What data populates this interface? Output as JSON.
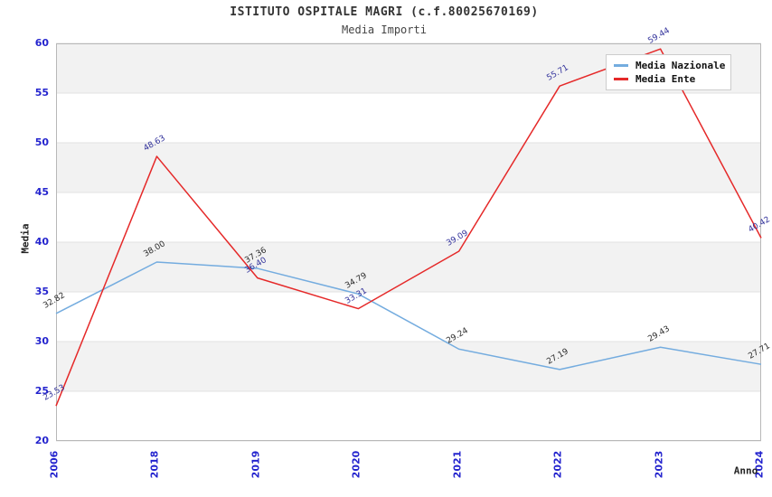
{
  "header": {
    "title": "ISTITUTO OSPITALE MAGRI (c.f.80025670169)",
    "subtitle": "Media Importi"
  },
  "chart_data": {
    "type": "line",
    "title": "ISTITUTO OSPITALE MAGRI (c.f.80025670169)",
    "subtitle": "Media Importi",
    "xlabel": "Anno",
    "ylabel": "Media",
    "x": [
      "2006",
      "2018",
      "2019",
      "2020",
      "2021",
      "2022",
      "2023",
      "2024"
    ],
    "series": [
      {
        "name": "Media Nazionale",
        "color": "#74ACDF",
        "label_color": "#2a2a2a",
        "values": [
          32.82,
          38.0,
          37.36,
          34.79,
          29.24,
          27.19,
          29.43,
          27.71
        ]
      },
      {
        "name": "Media Ente",
        "color": "#E52929",
        "label_color": "#30309A",
        "values": [
          23.53,
          48.63,
          36.4,
          33.31,
          39.09,
          55.71,
          59.44,
          40.42
        ]
      }
    ],
    "ylim": [
      20,
      60
    ],
    "ytick_step": 5,
    "grid": "horizontal-bands",
    "legend_position": "top-right",
    "colors": {
      "tick_label": "#2424CE",
      "band_fill": "#f2f2f2",
      "grid_line": "#e2e2e2",
      "frame": "#b8b8b8"
    }
  }
}
